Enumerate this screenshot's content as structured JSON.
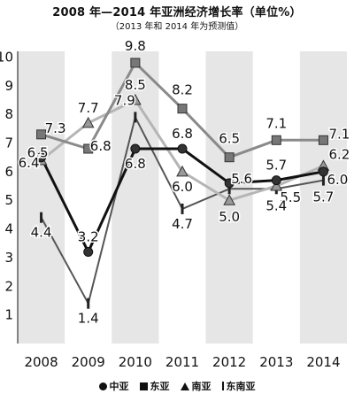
{
  "chart_data": {
    "type": "line",
    "title": "2008 年—2014 年亚洲经济增长率（单位%）",
    "subtitle": "（2013 年和 2014 年为预测值）",
    "xlabel": "",
    "ylabel": "",
    "x": [
      "2008",
      "2009",
      "2010",
      "2011",
      "2012",
      "2013",
      "2014"
    ],
    "yticks": [
      1,
      2,
      3,
      4,
      5,
      6,
      7,
      8,
      9,
      10
    ],
    "ylim": [
      0,
      10.2
    ],
    "grid": false,
    "legend_position": "bottom",
    "series": [
      {
        "name": "中亚",
        "marker": "circle",
        "color": "#111111",
        "line_width": 3,
        "values": [
          6.5,
          3.2,
          6.8,
          6.8,
          5.6,
          5.7,
          6.0
        ],
        "labels": [
          "6.5",
          "3.2",
          "6.8",
          "6.8",
          "5.6",
          "5.7",
          "6.0"
        ]
      },
      {
        "name": "东亚",
        "marker": "square",
        "color": "#8a8a8a",
        "line_width": 3,
        "values": [
          7.3,
          6.8,
          9.8,
          8.2,
          6.5,
          7.1,
          7.1
        ],
        "labels": [
          "7.3",
          "6.8",
          "9.8",
          "8.2",
          "6.5",
          "7.1",
          "7.1"
        ]
      },
      {
        "name": "南亚",
        "marker": "triangle",
        "color": "#b5b5b5",
        "line_width": 3,
        "values": [
          6.4,
          7.7,
          8.5,
          6.0,
          5.0,
          5.5,
          6.2
        ],
        "labels": [
          "6.4",
          "7.7",
          "8.5",
          "6.0",
          "5.0",
          "5.5",
          "6.2"
        ]
      },
      {
        "name": "东南亚",
        "marker": "bar",
        "color": "#555555",
        "line_width": 2,
        "values": [
          4.4,
          1.4,
          7.9,
          4.7,
          5.4,
          5.4,
          5.7
        ],
        "labels": [
          "4.4",
          "1.4",
          "7.9",
          "4.7",
          "",
          "5.4",
          "5.7"
        ]
      }
    ]
  },
  "legend": {
    "items": [
      {
        "label": "中亚",
        "marker": "circle"
      },
      {
        "label": "东亚",
        "marker": "square"
      },
      {
        "label": "南亚",
        "marker": "triangle"
      },
      {
        "label": "东南亚",
        "marker": "bar"
      }
    ]
  },
  "colors": {
    "stripe": "#e6e6e6",
    "background": "#ffffff",
    "text": "#111111"
  }
}
